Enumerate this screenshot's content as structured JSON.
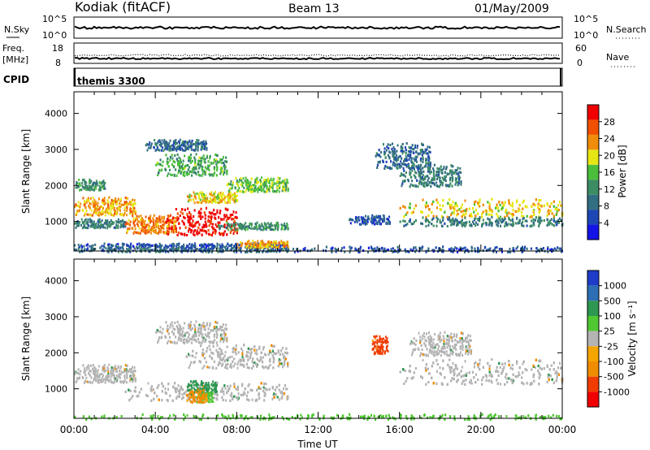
{
  "header": {
    "station": "Kodiak (fitACF)",
    "beam": "Beam 13",
    "date": "01/May/2009"
  },
  "top_panels": {
    "nsky_label": "N.Sky",
    "nsky_ticks": [
      "10^5",
      "10^0"
    ],
    "nsearch_label": "N.Search",
    "nsearch_ticks": [
      "10^5",
      "10^0"
    ],
    "freq_label": "Freq.",
    "freq_unit": "[MHz]",
    "freq_ticks": [
      "18",
      "8"
    ],
    "nave_label": "Nave",
    "nave_ticks": [
      "60",
      "0"
    ],
    "cpid_label": "CPID",
    "cpid_value": "themis 3300"
  },
  "colors": {
    "power_scale": [
      "#1414e6",
      "#1e46b4",
      "#326e82",
      "#3c8c64",
      "#4bbe3c",
      "#e6e614",
      "#f08c0a",
      "#f05000",
      "#f00000"
    ],
    "velocity_scale": [
      "#1e3cc8",
      "#2d6eb4",
      "#2d9650",
      "#50c832",
      "#b4b4b4",
      "#f5a500",
      "#f08c00",
      "#f03c00",
      "#f00000"
    ],
    "ground_scatter": "#b4b4b4"
  },
  "chart_data": [
    {
      "type": "heatmap",
      "panel": "power",
      "ylabel": "Slant Range [km]",
      "xlabel": "",
      "ylim": [
        180,
        4600
      ],
      "yticks": [
        "4000",
        "3000",
        "2000",
        "1000"
      ],
      "xlim": [
        "00:00",
        "24:00"
      ],
      "colorbar": {
        "label": "Power [dB]",
        "range": [
          0,
          32
        ],
        "ticks": [
          "28",
          "24",
          "20",
          "16",
          "12",
          "8",
          "4"
        ]
      },
      "regions": [
        {
          "t0": 0.0,
          "t1": 10.5,
          "r0": 180,
          "r1": 320,
          "value": 8
        },
        {
          "t0": 0.0,
          "t1": 10.5,
          "r0": 320,
          "r1": 420,
          "value": 6
        },
        {
          "t0": 10.5,
          "t1": 24.0,
          "r0": 180,
          "r1": 330,
          "value": 6
        },
        {
          "t0": 0.0,
          "t1": 1.5,
          "r0": 1900,
          "r1": 2200,
          "value": 12
        },
        {
          "t0": 0.0,
          "t1": 3.0,
          "r0": 1200,
          "r1": 1700,
          "value": 22
        },
        {
          "t0": 0.0,
          "t1": 2.5,
          "r0": 850,
          "r1": 1100,
          "value": 10
        },
        {
          "t0": 2.5,
          "t1": 5.0,
          "r0": 700,
          "r1": 1200,
          "value": 24
        },
        {
          "t0": 4.5,
          "t1": 8.0,
          "r0": 650,
          "r1": 1400,
          "value": 30
        },
        {
          "t0": 7.0,
          "t1": 10.5,
          "r0": 800,
          "r1": 1000,
          "value": 12
        },
        {
          "t0": 8.0,
          "t1": 10.5,
          "r0": 300,
          "r1": 500,
          "value": 22
        },
        {
          "t0": 5.5,
          "t1": 8.0,
          "r0": 1550,
          "r1": 1850,
          "value": 20
        },
        {
          "t0": 7.5,
          "t1": 10.5,
          "r0": 1850,
          "r1": 2250,
          "value": 16
        },
        {
          "t0": 4.0,
          "t1": 7.5,
          "r0": 2300,
          "r1": 2900,
          "value": 14
        },
        {
          "t0": 3.5,
          "t1": 6.5,
          "r0": 3000,
          "r1": 3300,
          "value": 8
        },
        {
          "t0": 14.8,
          "t1": 17.5,
          "r0": 2500,
          "r1": 3200,
          "value": 8
        },
        {
          "t0": 16.0,
          "t1": 19.0,
          "r0": 2000,
          "r1": 2600,
          "value": 10
        },
        {
          "t0": 16.0,
          "t1": 24.0,
          "r0": 1150,
          "r1": 1650,
          "value": 20
        },
        {
          "t0": 16.0,
          "t1": 24.0,
          "r0": 900,
          "r1": 1150,
          "value": 10
        },
        {
          "t0": 13.5,
          "t1": 15.5,
          "r0": 950,
          "r1": 1200,
          "value": 6
        }
      ]
    },
    {
      "type": "heatmap",
      "panel": "velocity",
      "ylabel": "Slant Range [km]",
      "xlabel": "Time UT",
      "ylim": [
        180,
        4600
      ],
      "yticks": [
        "4000",
        "3000",
        "2000",
        "1000"
      ],
      "xlim": [
        "00:00",
        "24:00"
      ],
      "xticks": [
        "00:00",
        "04:00",
        "08:00",
        "12:00",
        "16:00",
        "20:00",
        "00:00"
      ],
      "colorbar": {
        "label": "Velocity [m s⁻¹]",
        "bins": [
          -1500,
          -1000,
          -500,
          -100,
          -25,
          25,
          100,
          500,
          1000,
          1500
        ],
        "ticks": [
          "1000",
          "500",
          "100",
          "25",
          "-25",
          "-100",
          "-500",
          "-1000"
        ]
      },
      "regions": [
        {
          "t0": 0.0,
          "t1": 3.0,
          "r0": 1200,
          "r1": 1700,
          "value": 0
        },
        {
          "t0": 2.5,
          "t1": 10.5,
          "r0": 700,
          "r1": 1200,
          "value": 0
        },
        {
          "t0": 5.5,
          "t1": 10.5,
          "r0": 1600,
          "r1": 2250,
          "value": 0
        },
        {
          "t0": 4.0,
          "t1": 7.5,
          "r0": 2300,
          "r1": 2900,
          "value": 0
        },
        {
          "t0": 5.5,
          "t1": 7.0,
          "r0": 900,
          "r1": 1250,
          "value": 200
        },
        {
          "t0": 6.0,
          "t1": 6.8,
          "r0": 650,
          "r1": 950,
          "value": 60
        },
        {
          "t0": 5.5,
          "t1": 6.5,
          "r0": 650,
          "r1": 1000,
          "value": -150
        },
        {
          "t0": 14.6,
          "t1": 15.4,
          "r0": 2000,
          "r1": 2500,
          "value": -700
        },
        {
          "t0": 16.0,
          "t1": 24.0,
          "r0": 1150,
          "r1": 1850,
          "value": 0
        },
        {
          "t0": 16.5,
          "t1": 19.5,
          "r0": 1950,
          "r1": 2600,
          "value": 0
        },
        {
          "t0": 0.0,
          "t1": 24.0,
          "r0": 180,
          "r1": 320,
          "value": 60
        }
      ]
    }
  ]
}
